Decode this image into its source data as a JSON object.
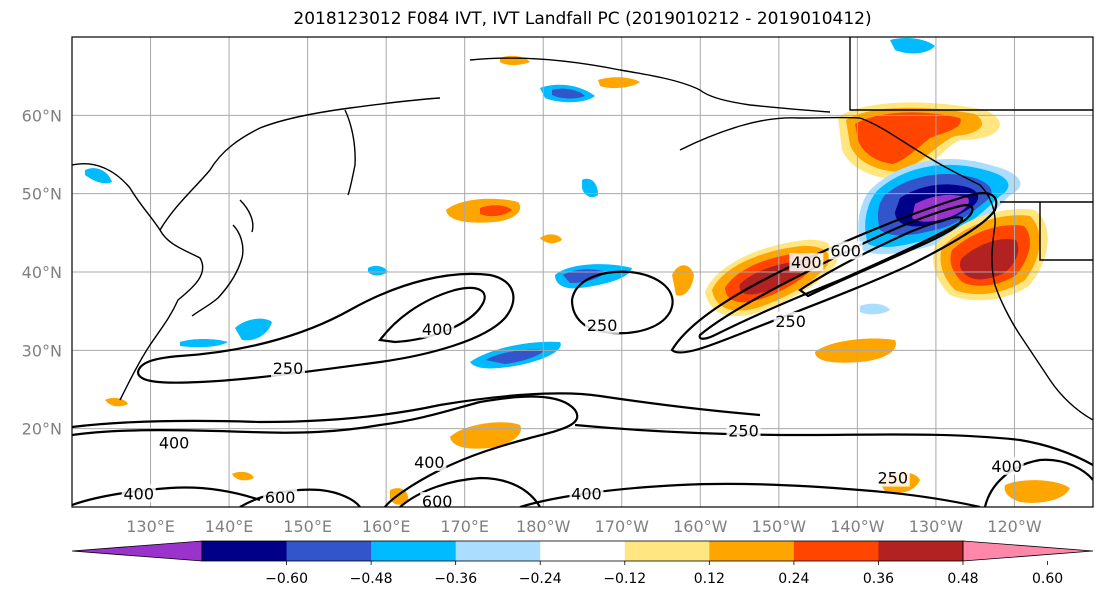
{
  "title": "2018123012 F084 IVT, IVT Landfall PC (2019010212 - 2019010412)",
  "map": {
    "lat_labels": [
      {
        "lat": 60,
        "label": "60°N"
      },
      {
        "lat": 50,
        "label": "50°N"
      },
      {
        "lat": 40,
        "label": "40°N"
      },
      {
        "lat": 30,
        "label": "30°N"
      },
      {
        "lat": 20,
        "label": "20°N"
      }
    ],
    "lon_labels": [
      {
        "lon": 130,
        "label": "130°E"
      },
      {
        "lon": 140,
        "label": "140°E"
      },
      {
        "lon": 150,
        "label": "150°E"
      },
      {
        "lon": 160,
        "label": "160°E"
      },
      {
        "lon": 170,
        "label": "170°E"
      },
      {
        "lon": 180,
        "label": "180°W"
      },
      {
        "lon": 190,
        "label": "170°W"
      },
      {
        "lon": 200,
        "label": "160°W"
      },
      {
        "lon": 210,
        "label": "150°W"
      },
      {
        "lon": 220,
        "label": "140°W"
      },
      {
        "lon": 230,
        "label": "130°W"
      },
      {
        "lon": 240,
        "label": "120°W"
      }
    ],
    "lon_range": [
      120,
      250
    ],
    "lat_range": [
      10,
      70
    ],
    "grid": true,
    "contour_labels": [
      {
        "text": "400",
        "lon": 166.5,
        "lat": 32.5
      },
      {
        "text": "250",
        "lon": 147.5,
        "lat": 27.5
      },
      {
        "text": "250",
        "lon": 187.5,
        "lat": 33.0
      },
      {
        "text": "400",
        "lon": 213.5,
        "lat": 41.0
      },
      {
        "text": "600",
        "lon": 218.5,
        "lat": 42.5
      },
      {
        "text": "250",
        "lon": 211.5,
        "lat": 33.5
      },
      {
        "text": "400",
        "lon": 133.0,
        "lat": 18.0
      },
      {
        "text": "400",
        "lon": 128.5,
        "lat": 11.5
      },
      {
        "text": "600",
        "lon": 146.5,
        "lat": 11.0
      },
      {
        "text": "400",
        "lon": 165.5,
        "lat": 15.5
      },
      {
        "text": "600",
        "lon": 166.5,
        "lat": 10.5
      },
      {
        "text": "400",
        "lon": 185.5,
        "lat": 11.5
      },
      {
        "text": "250",
        "lon": 205.5,
        "lat": 19.5
      },
      {
        "text": "250",
        "lon": 224.5,
        "lat": 13.5
      },
      {
        "text": "400",
        "lon": 239.0,
        "lat": 15.0
      }
    ]
  },
  "colorbar": {
    "colors": [
      "#9933cc",
      "#000088",
      "#3355cc",
      "#00bbff",
      "#aaddff",
      "#ffffff",
      "#ffe680",
      "#ffa500",
      "#ff4500",
      "#b22222",
      "#ff88aa"
    ],
    "ticks": [
      "−0.60",
      "−0.48",
      "−0.36",
      "−0.24",
      "−0.12",
      "0.12",
      "0.24",
      "0.36",
      "0.48",
      "0.60"
    ],
    "extend": "both"
  },
  "chart_data": {
    "type": "heatmap",
    "title": "2018123012 F084 IVT, IVT Landfall PC (2019010212 - 2019010412)",
    "fields": [
      "IVT contours",
      "IVT Landfall PC (shaded)"
    ],
    "contour_levels": [
      250,
      400,
      600
    ],
    "shading_levels": [
      -0.6,
      -0.48,
      -0.36,
      -0.24,
      -0.12,
      0.12,
      0.24,
      0.36,
      0.48,
      0.6
    ],
    "xlim": [
      120,
      250
    ],
    "ylim": [
      10,
      70
    ]
  }
}
